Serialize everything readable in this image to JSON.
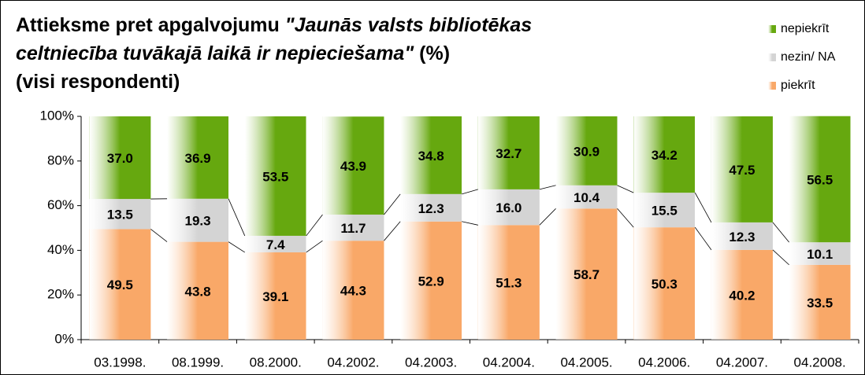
{
  "chart_data": {
    "type": "stacked_bar",
    "title_lines": [
      [
        {
          "text": "Attieksme pret apgalvojumu ",
          "italic": false
        },
        {
          "text": "\"Jaunās valsts bibliotēkas",
          "italic": true
        }
      ],
      [
        {
          "text": "celtniecība tuvākajā laikā ir nepieciešama\"",
          "italic": true
        },
        {
          "text": " (%)",
          "italic": false
        }
      ],
      [
        {
          "text": "(visi respondenti)",
          "italic": false
        }
      ]
    ],
    "categories": [
      "03.1998.",
      "08.1999.",
      "08.2000.",
      "04.2002.",
      "04.2003.",
      "04.2004.",
      "04.2005.",
      "04.2006.",
      "04.2007.",
      "04.2008."
    ],
    "series": [
      {
        "name": "piekrīt",
        "color": "#f9a868",
        "values": [
          49.5,
          43.8,
          39.1,
          44.3,
          52.9,
          51.3,
          58.7,
          50.3,
          40.2,
          33.5
        ],
        "value_labels": [
          "49.5",
          "43.8",
          "39.1",
          "44.3",
          "52.9",
          "51.3",
          "58.7",
          "50.3",
          "40.2",
          "33.5"
        ]
      },
      {
        "name": "nezin/ NA",
        "color": "#d4d4d4",
        "values": [
          13.5,
          19.3,
          7.4,
          11.7,
          12.3,
          16,
          10.4,
          15.5,
          12.3,
          10.1
        ],
        "value_labels": [
          "13.5",
          "19.3",
          "7.4",
          "11.7",
          "12.3",
          "16.0",
          "10.4",
          "15.5",
          "12.3",
          "10.1"
        ]
      },
      {
        "name": "nepiekrīt",
        "color": "#66a80f",
        "values": [
          37,
          36.9,
          53.5,
          43.9,
          34.8,
          32.7,
          30.9,
          34.2,
          47.5,
          56.5
        ],
        "value_labels": [
          "37.0",
          "36.9",
          "53.5",
          "43.9",
          "34.8",
          "32.7",
          "30.9",
          "34.2",
          "47.5",
          "56.5"
        ]
      }
    ],
    "ylim": [
      0,
      100
    ],
    "yticks": [
      {
        "value": 0,
        "label": "0%"
      },
      {
        "value": 20,
        "label": "20%"
      },
      {
        "value": 40,
        "label": "40%"
      },
      {
        "value": 60,
        "label": "60%"
      },
      {
        "value": 80,
        "label": "80%"
      },
      {
        "value": 100,
        "label": "100%"
      }
    ],
    "legend": "top-right"
  }
}
